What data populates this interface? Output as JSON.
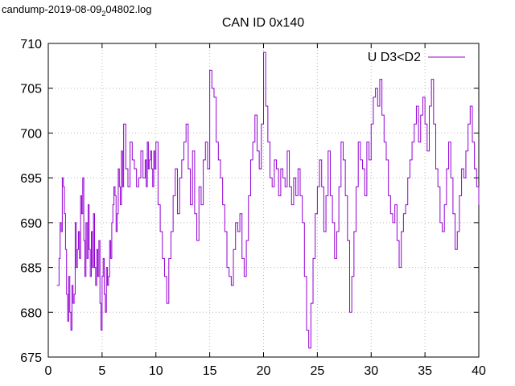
{
  "file_label": {
    "main": "candump-2019-08-09",
    "sub": "2",
    "rest": "04802.log"
  },
  "chart_data": {
    "type": "line",
    "title": "CAN ID 0x140",
    "xlabel": "",
    "ylabel": "",
    "xlim": [
      0,
      40
    ],
    "ylim": [
      675,
      710
    ],
    "xticks": [
      0,
      5,
      10,
      15,
      20,
      25,
      30,
      35,
      40
    ],
    "yticks": [
      675,
      680,
      685,
      690,
      695,
      700,
      705,
      710
    ],
    "grid": true,
    "legend_position": "top-right",
    "series": [
      {
        "name": "U D3<D2",
        "color": "#9400d3",
        "step": "post",
        "x": [
          0.8,
          1.0,
          1.1,
          1.2,
          1.3,
          1.4,
          1.5,
          1.6,
          1.7,
          1.8,
          1.9,
          2.0,
          2.1,
          2.2,
          2.3,
          2.4,
          2.5,
          2.6,
          2.7,
          2.8,
          2.9,
          3.0,
          3.1,
          3.2,
          3.3,
          3.4,
          3.5,
          3.6,
          3.7,
          3.8,
          3.9,
          4.0,
          4.1,
          4.2,
          4.3,
          4.4,
          4.5,
          4.6,
          4.7,
          4.8,
          4.9,
          5.0,
          5.1,
          5.2,
          5.3,
          5.4,
          5.5,
          5.6,
          5.7,
          5.8,
          5.9,
          6.0,
          6.1,
          6.2,
          6.3,
          6.4,
          6.5,
          6.6,
          6.7,
          6.8,
          6.9,
          7.0,
          7.2,
          7.4,
          7.6,
          7.8,
          8.0,
          8.2,
          8.4,
          8.6,
          8.8,
          9.0,
          9.1,
          9.2,
          9.3,
          9.4,
          9.5,
          9.6,
          9.7,
          9.8,
          9.9,
          10.0,
          10.2,
          10.4,
          10.6,
          10.8,
          11.0,
          11.2,
          11.4,
          11.6,
          11.8,
          12.0,
          12.2,
          12.4,
          12.6,
          12.8,
          13.0,
          13.2,
          13.4,
          13.6,
          13.8,
          14.0,
          14.2,
          14.4,
          14.6,
          14.8,
          15.0,
          15.2,
          15.4,
          15.6,
          15.8,
          16.0,
          16.2,
          16.4,
          16.6,
          16.8,
          17.0,
          17.2,
          17.4,
          17.6,
          17.8,
          18.0,
          18.2,
          18.4,
          18.6,
          18.8,
          19.0,
          19.2,
          19.4,
          19.6,
          19.8,
          20.0,
          20.2,
          20.4,
          20.6,
          20.8,
          21.0,
          21.2,
          21.4,
          21.6,
          21.8,
          22.0,
          22.2,
          22.4,
          22.6,
          22.8,
          23.0,
          23.2,
          23.4,
          23.6,
          23.8,
          24.0,
          24.2,
          24.4,
          24.6,
          24.8,
          25.0,
          25.2,
          25.4,
          25.6,
          25.8,
          26.0,
          26.2,
          26.4,
          26.6,
          26.8,
          27.0,
          27.2,
          27.4,
          27.6,
          27.8,
          28.0,
          28.2,
          28.4,
          28.6,
          28.8,
          29.0,
          29.2,
          29.4,
          29.6,
          29.8,
          30.0,
          30.2,
          30.4,
          30.6,
          30.8,
          31.0,
          31.2,
          31.4,
          31.6,
          31.8,
          32.0,
          32.2,
          32.4,
          32.6,
          32.8,
          33.0,
          33.2,
          33.4,
          33.6,
          33.8,
          34.0,
          34.2,
          34.4,
          34.6,
          34.8,
          35.0,
          35.2,
          35.4,
          35.6,
          35.8,
          36.0,
          36.2,
          36.4,
          36.6,
          36.8,
          37.0,
          37.2,
          37.4,
          37.6,
          37.8,
          38.0,
          38.2,
          38.4,
          38.6,
          38.8,
          39.0,
          39.2,
          39.4,
          39.6,
          39.8,
          40.0
        ],
        "y": [
          683,
          686,
          690,
          689,
          695,
          694,
          691,
          687,
          682,
          679,
          684,
          680,
          678,
          683,
          681,
          682,
          690,
          685,
          687,
          689,
          686,
          693,
          691,
          695,
          688,
          684,
          690,
          686,
          692,
          687,
          684,
          689,
          685,
          691,
          685,
          683,
          687,
          684,
          688,
          681,
          678,
          684,
          686,
          682,
          680,
          685,
          683,
          684,
          688,
          686,
          690,
          692,
          694,
          693,
          689,
          691,
          696,
          694,
          692,
          698,
          694,
          701,
          696,
          694,
          699,
          697,
          696,
          694,
          695,
          698,
          695,
          697,
          694,
          699,
          696,
          697,
          698,
          696,
          694,
          698,
          696,
          699,
          692,
          689,
          686,
          684,
          681,
          686,
          689,
          693,
          696,
          691,
          695,
          697,
          699,
          701,
          696,
          692,
          698,
          691,
          688,
          694,
          692,
          697,
          699,
          696,
          707,
          705,
          704,
          699,
          697,
          695,
          692,
          689,
          685,
          684,
          683,
          687,
          690,
          689,
          691,
          686,
          684,
          688,
          693,
          697,
          699,
          702,
          698,
          696,
          701,
          709,
          703,
          699,
          695,
          694,
          697,
          696,
          693,
          696,
          695,
          694,
          698,
          694,
          692,
          695,
          693,
          696,
          693,
          690,
          684,
          678,
          676,
          681,
          686,
          691,
          694,
          697,
          694,
          689,
          693,
          698,
          693,
          690,
          686,
          689,
          694,
          699,
          697,
          693,
          688,
          680,
          684,
          689,
          694,
          699,
          697,
          696,
          693,
          699,
          697,
          701,
          704,
          705,
          703,
          706,
          702,
          699,
          697,
          693,
          691,
          690,
          692,
          688,
          685,
          689,
          691,
          692,
          695,
          697,
          699,
          701,
          703,
          699,
          702,
          704,
          701,
          698,
          703,
          706,
          701,
          696,
          694,
          690,
          689,
          692,
          696,
          699,
          695,
          691,
          687,
          689,
          693,
          696,
          695,
          698,
          701,
          703,
          699,
          696,
          694,
          692
        ]
      }
    ]
  }
}
